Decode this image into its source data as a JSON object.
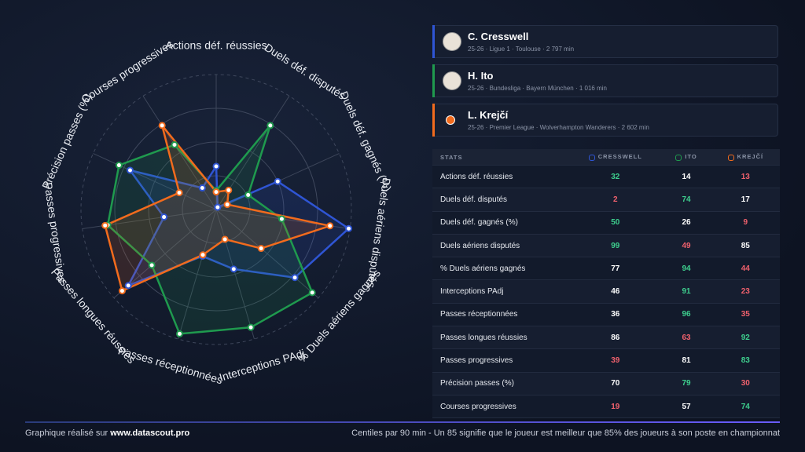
{
  "chart_data": {
    "type": "radar",
    "categories": [
      "Actions déf. réussies",
      "Duels déf. disputés",
      "Duels déf. gagnés (%)",
      "Duels aériens disputés",
      "% Duels aériens gagnés",
      "Interceptions PAdj",
      "Passes réceptionnées",
      "Passes longues réussies",
      "Passes progressives",
      "Précision passes (%)",
      "Courses progressives"
    ],
    "series": [
      {
        "name": "C. Cresswell",
        "color": "#2f55d4",
        "values": [
          32,
          2,
          50,
          99,
          77,
          46,
          36,
          86,
          39,
          70,
          19
        ]
      },
      {
        "name": "H. Ito",
        "color": "#1f9a4e",
        "values": [
          14,
          74,
          26,
          49,
          94,
          91,
          96,
          63,
          81,
          79,
          57
        ]
      },
      {
        "name": "L. Krejčí",
        "color": "#f26b1d",
        "values": [
          13,
          17,
          9,
          85,
          44,
          23,
          35,
          92,
          83,
          30,
          74
        ]
      }
    ],
    "rlim": [
      0,
      100
    ],
    "rticks": [
      25,
      50,
      75,
      100
    ],
    "grid": true
  },
  "players": [
    {
      "details": "25-26 · Ligue 1 · Toulouse · 2 797 min"
    },
    {
      "details": "25-26 · Bundesliga · Bayern München · 1 016 min"
    },
    {
      "details": "25-26 · Premier League · Wolverhampton Wanderers · 2 602 min"
    }
  ],
  "table": {
    "headers": [
      "STATS",
      "CRESSWELL",
      "ITO",
      "KREJČÍ"
    ]
  },
  "footer": {
    "credit": "Graphique réalisé sur",
    "site": "www.datascout.pro",
    "note": "Centiles par 90 min - Un 85 signifie que le joueur est meilleur que 85% des joueurs à son poste en championnat"
  }
}
